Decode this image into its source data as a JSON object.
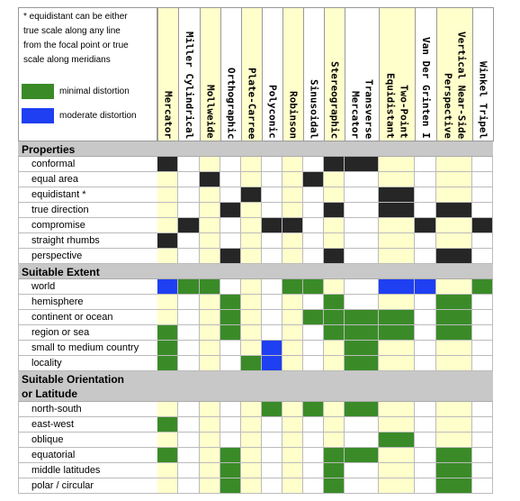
{
  "note": [
    "* equidistant can be either",
    "true scale along any line",
    "from the focal point or true",
    "scale along meridians"
  ],
  "colors": {
    "black": "#262626",
    "green": "#3a8b28",
    "blue": "#1e3ff2"
  },
  "legend": [
    {
      "label": "minimal distortion",
      "swatch": "green"
    },
    {
      "label": "moderate distortion",
      "swatch": "blue"
    }
  ],
  "columns": [
    [
      "Mercator"
    ],
    [
      "Miller Cylindrical"
    ],
    [
      "Mollweide"
    ],
    [
      "Orthographic"
    ],
    [
      "Plate-Carree"
    ],
    [
      "Polyconic"
    ],
    [
      "Robinson"
    ],
    [
      "Sinusoidal"
    ],
    [
      "Stereographic"
    ],
    [
      "Transverse",
      "Mercator"
    ],
    [
      "Two-Point",
      "Equidistant"
    ],
    [
      "Van Der Grinten I"
    ],
    [
      "Vertical Near-Side",
      "Perspective"
    ],
    [
      "Winkel Tripel"
    ]
  ],
  "sections": [
    {
      "title": [
        "Properties"
      ],
      "rows": [
        {
          "label": "conformal",
          "cells": [
            "black",
            null,
            null,
            null,
            null,
            null,
            null,
            null,
            "black",
            "black",
            null,
            null,
            null,
            null
          ]
        },
        {
          "label": "equal area",
          "cells": [
            null,
            null,
            "black",
            null,
            null,
            null,
            null,
            "black",
            null,
            null,
            null,
            null,
            null,
            null
          ]
        },
        {
          "label": "equidistant *",
          "cells": [
            null,
            null,
            null,
            null,
            "black",
            null,
            null,
            null,
            null,
            null,
            "black",
            null,
            null,
            null
          ]
        },
        {
          "label": "true direction",
          "cells": [
            null,
            null,
            null,
            "black",
            null,
            null,
            null,
            null,
            "black",
            null,
            "black",
            null,
            "black",
            null
          ]
        },
        {
          "label": "compromise",
          "cells": [
            null,
            "black",
            null,
            null,
            null,
            "black",
            "black",
            null,
            null,
            null,
            null,
            "black",
            null,
            "black"
          ]
        },
        {
          "label": "straight rhumbs",
          "cells": [
            "black",
            null,
            null,
            null,
            null,
            null,
            null,
            null,
            null,
            null,
            null,
            null,
            null,
            null
          ]
        },
        {
          "label": "perspective",
          "cells": [
            null,
            null,
            null,
            "black",
            null,
            null,
            null,
            null,
            "black",
            null,
            null,
            null,
            "black",
            null
          ]
        }
      ]
    },
    {
      "title": [
        "Suitable Extent"
      ],
      "rows": [
        {
          "label": "world",
          "cells": [
            "blue",
            "green",
            "green",
            null,
            null,
            null,
            "green",
            "green",
            null,
            null,
            "blue",
            "blue",
            null,
            "green"
          ]
        },
        {
          "label": "hemisphere",
          "cells": [
            null,
            null,
            null,
            "green",
            null,
            null,
            null,
            null,
            "green",
            null,
            null,
            null,
            "green",
            null
          ]
        },
        {
          "label": "continent or ocean",
          "cells": [
            null,
            null,
            null,
            "green",
            null,
            null,
            null,
            "green",
            "green",
            "green",
            "green",
            null,
            "green",
            null
          ]
        },
        {
          "label": "region or sea",
          "cells": [
            "green",
            null,
            null,
            "green",
            null,
            null,
            null,
            null,
            "green",
            "green",
            "green",
            null,
            "green",
            null
          ]
        },
        {
          "label": "small to medium country",
          "cells": [
            "green",
            null,
            null,
            null,
            null,
            "blue",
            null,
            null,
            null,
            "green",
            null,
            null,
            null,
            null
          ]
        },
        {
          "label": "locality",
          "cells": [
            "green",
            null,
            null,
            null,
            "green",
            "blue",
            null,
            null,
            null,
            "green",
            null,
            null,
            null,
            null
          ]
        }
      ]
    },
    {
      "title": [
        "Suitable Orientation",
        "or Latitude"
      ],
      "rows": [
        {
          "label": "north-south",
          "cells": [
            null,
            null,
            null,
            null,
            null,
            "green",
            null,
            "green",
            null,
            "green",
            null,
            null,
            null,
            null
          ]
        },
        {
          "label": "east-west",
          "cells": [
            "green",
            null,
            null,
            null,
            null,
            null,
            null,
            null,
            null,
            null,
            null,
            null,
            null,
            null
          ]
        },
        {
          "label": "oblique",
          "cells": [
            null,
            null,
            null,
            null,
            null,
            null,
            null,
            null,
            null,
            null,
            "green",
            null,
            null,
            null
          ]
        },
        {
          "label": "equatorial",
          "cells": [
            "green",
            null,
            null,
            "green",
            null,
            null,
            null,
            null,
            "green",
            "green",
            null,
            null,
            "green",
            null
          ]
        },
        {
          "label": "middle latitudes",
          "cells": [
            null,
            null,
            null,
            "green",
            null,
            null,
            null,
            null,
            "green",
            null,
            null,
            null,
            "green",
            null
          ]
        },
        {
          "label": "polar / circular",
          "cells": [
            null,
            null,
            null,
            "green",
            null,
            null,
            null,
            null,
            "green",
            null,
            null,
            null,
            "green",
            null
          ]
        }
      ]
    }
  ]
}
